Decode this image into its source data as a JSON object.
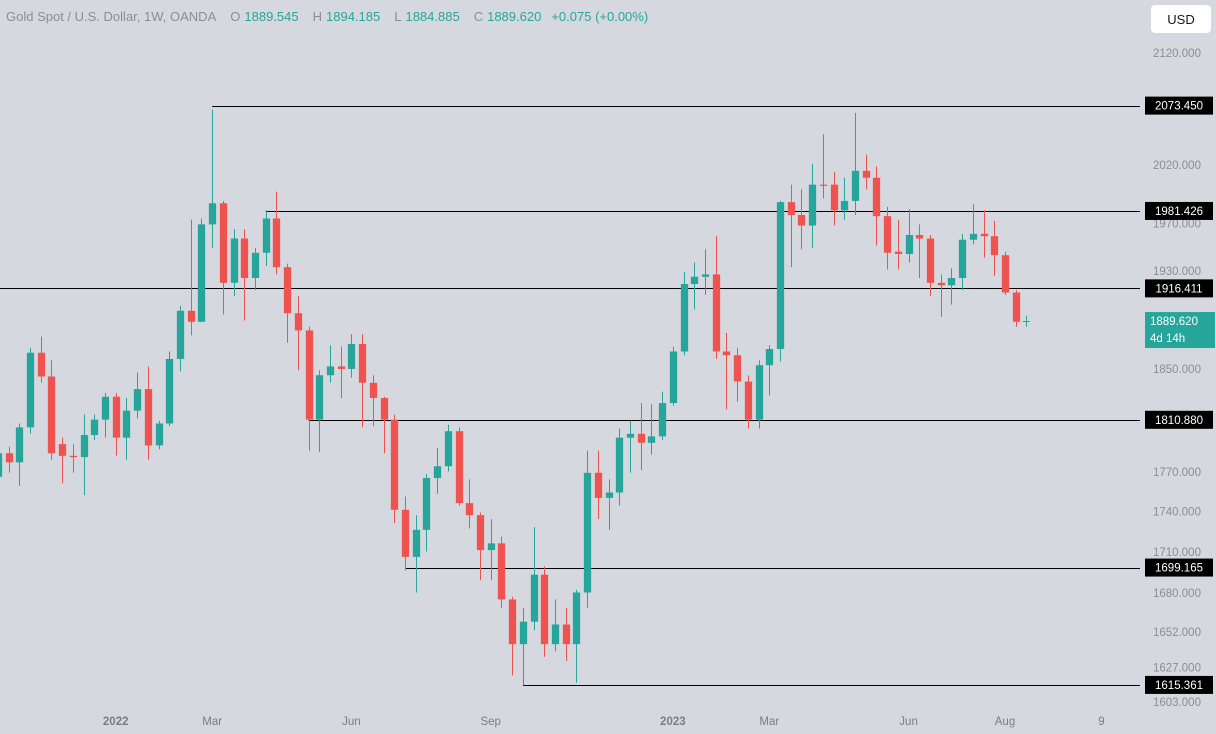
{
  "chart_data": {
    "type": "candlestick",
    "title": "Gold Spot / U.S. Dollar, 1W, OANDA",
    "ohlc_legend": [
      {
        "key": "O",
        "value": "1889.545"
      },
      {
        "key": "H",
        "value": "1894.185"
      },
      {
        "key": "L",
        "value": "1884.885"
      },
      {
        "key": "C",
        "value": "1889.620"
      }
    ],
    "change": "+0.075 (+0.00%)",
    "currency": "USD",
    "up_color": "#26a69a",
    "down_color": "#ef5350",
    "log_scale": true,
    "grid": false,
    "x": [
      0,
      1,
      2,
      3,
      4,
      5,
      6,
      7,
      8,
      9,
      10,
      11,
      12,
      13,
      14,
      15,
      16,
      17,
      18,
      19,
      20,
      21,
      22,
      23,
      24,
      25,
      26,
      27,
      28,
      29,
      30,
      31,
      32,
      33,
      34,
      35,
      36,
      37,
      38,
      39,
      40,
      41,
      42,
      43,
      44,
      45,
      46,
      47,
      48,
      49,
      50,
      51,
      52,
      53,
      54,
      55,
      56,
      57,
      58,
      59,
      60,
      61,
      62,
      63,
      64,
      65,
      66,
      67,
      68,
      69,
      70,
      71,
      72,
      73,
      74,
      75,
      76,
      77,
      78,
      79,
      80,
      81,
      82,
      83,
      84,
      85,
      86,
      87,
      88,
      89,
      90,
      91,
      92,
      93,
      94,
      95,
      96
    ],
    "open": [
      1767,
      1785,
      1778,
      1805,
      1864,
      1845,
      1792,
      1783,
      1782,
      1799,
      1811,
      1829,
      1797,
      1818,
      1835,
      1791,
      1808,
      1859,
      1898,
      1889,
      1970,
      1988,
      1921,
      1958,
      1925,
      1946,
      1975,
      1934,
      1896,
      1882,
      1811,
      1846,
      1853,
      1851,
      1871,
      1840,
      1828,
      1811,
      1742,
      1707,
      1727,
      1766,
      1775,
      1802,
      1747,
      1738,
      1712,
      1717,
      1676,
      1644,
      1660,
      1694,
      1644,
      1658,
      1644,
      1681,
      1770,
      1751,
      1755,
      1797,
      1800,
      1793,
      1798,
      1824,
      1865,
      1920,
      1926,
      1928,
      1865,
      1862,
      1841,
      1811,
      1854,
      1867,
      1989,
      1978,
      1969,
      2004,
      2004,
      1982,
      1990,
      2016,
      2010,
      1977,
      1947,
      1945,
      1961,
      1958,
      1921,
      1919,
      1925,
      1957,
      1962,
      1960,
      1944,
      1913,
      1889.545
    ],
    "high": [
      1795,
      1790,
      1808,
      1868,
      1877,
      1858,
      1797,
      1792,
      1815,
      1815,
      1832,
      1832,
      1828,
      1848,
      1853,
      1810,
      1865,
      1902,
      1974,
      1975,
      2070,
      1990,
      1966,
      1966,
      1950,
      1982,
      1998,
      1937,
      1910,
      1885,
      1850,
      1870,
      1869,
      1879,
      1879,
      1846,
      1829,
      1815,
      1752,
      1738,
      1769,
      1789,
      1807,
      1805,
      1765,
      1740,
      1735,
      1722,
      1678,
      1670,
      1729,
      1700,
      1676,
      1670,
      1683,
      1787,
      1787,
      1765,
      1804,
      1810,
      1824,
      1823,
      1833,
      1869,
      1930,
      1938,
      1949,
      1960,
      1880,
      1868,
      1846,
      1858,
      1870,
      1990,
      2004,
      2000,
      2022,
      2048,
      2015,
      2010,
      2067,
      2030,
      2020,
      1985,
      1974,
      1983,
      1970,
      1961,
      1928,
      1933,
      1962,
      1987,
      1982,
      1973,
      1947,
      1915,
      1894.185
    ],
    "low": [
      1760,
      1770,
      1760,
      1800,
      1840,
      1780,
      1762,
      1770,
      1753,
      1795,
      1797,
      1783,
      1780,
      1812,
      1780,
      1788,
      1806,
      1849,
      1878,
      1889,
      1950,
      1895,
      1910,
      1890,
      1915,
      1935,
      1928,
      1872,
      1850,
      1787,
      1786,
      1840,
      1828,
      1844,
      1805,
      1806,
      1785,
      1732,
      1697,
      1681,
      1711,
      1754,
      1771,
      1745,
      1728,
      1690,
      1690,
      1670,
      1622,
      1615,
      1654,
      1635,
      1639,
      1632,
      1617,
      1670,
      1735,
      1727,
      1745,
      1770,
      1772,
      1784,
      1795,
      1822,
      1862,
      1899,
      1911,
      1859,
      1819,
      1825,
      1804,
      1804,
      1830,
      1857,
      1934,
      1949,
      1950,
      1992,
      1969,
      1974,
      1978,
      2000,
      1952,
      1932,
      1932,
      1938,
      1925,
      1910,
      1893,
      1903,
      1915,
      1953,
      1942,
      1927,
      1911,
      1885,
      1884.885
    ],
    "close": [
      1785,
      1778,
      1805,
      1864,
      1845,
      1785,
      1783,
      1782,
      1799,
      1811,
      1829,
      1797,
      1818,
      1835,
      1791,
      1808,
      1859,
      1898,
      1889,
      1970,
      1988,
      1921,
      1958,
      1925,
      1946,
      1975,
      1934,
      1896,
      1882,
      1811,
      1846,
      1853,
      1851,
      1871,
      1840,
      1828,
      1811,
      1742,
      1707,
      1727,
      1766,
      1775,
      1802,
      1747,
      1738,
      1712,
      1717,
      1676,
      1644,
      1660,
      1694,
      1644,
      1658,
      1644,
      1681,
      1770,
      1751,
      1755,
      1797,
      1800,
      1793,
      1798,
      1824,
      1865,
      1920,
      1926,
      1928,
      1865,
      1862,
      1841,
      1811,
      1854,
      1867,
      1989,
      1978,
      1969,
      2004,
      2003,
      1982,
      1990,
      2016,
      2010,
      1977,
      1946,
      1945,
      1961,
      1958,
      1921,
      1919,
      1925,
      1957,
      1962,
      1960,
      1944,
      1913,
      1889,
      1889.62
    ],
    "xlim": [
      0.2,
      106.6
    ],
    "xticks": [
      {
        "value": 11,
        "label": "2022"
      },
      {
        "value": 20,
        "label": "Mar"
      },
      {
        "value": 33,
        "label": "Jun"
      },
      {
        "value": 46,
        "label": "Sep"
      },
      {
        "value": 63,
        "label": "2023"
      },
      {
        "value": 72,
        "label": "Mar"
      },
      {
        "value": 85,
        "label": "Jun"
      },
      {
        "value": 94,
        "label": "Aug"
      },
      {
        "value": 103,
        "label": "9"
      }
    ],
    "ylim": [
      1598,
      2170
    ],
    "yticks": [
      {
        "value": 2120,
        "label": "2120.000"
      },
      {
        "value": 2020,
        "label": "2020.000"
      },
      {
        "value": 1970,
        "label": "1970.000"
      },
      {
        "value": 1930,
        "label": "1930.000"
      },
      {
        "value": 1850,
        "label": "1850.000"
      },
      {
        "value": 1770,
        "label": "1770.000"
      },
      {
        "value": 1740,
        "label": "1740.000"
      },
      {
        "value": 1710,
        "label": "1710.000"
      },
      {
        "value": 1680,
        "label": "1680.000"
      },
      {
        "value": 1652,
        "label": "1652.000"
      },
      {
        "value": 1627,
        "label": "1627.000"
      },
      {
        "value": 1603,
        "label": "1603.000"
      }
    ],
    "levels": [
      {
        "value": 2073.45,
        "label": "2073.450",
        "from": 20
      },
      {
        "value": 1981.426,
        "label": "1981.426",
        "from": 25
      },
      {
        "value": 1916.411,
        "label": "1916.411",
        "from": 0
      },
      {
        "value": 1810.88,
        "label": "1810.880",
        "from": 29
      },
      {
        "value": 1699.165,
        "label": "1699.165",
        "from": 38
      },
      {
        "value": 1615.361,
        "label": "1615.361",
        "from": 49
      }
    ],
    "last_price": {
      "value": 1889.62,
      "label": "1889.620",
      "countdown": "4d 14h"
    }
  }
}
